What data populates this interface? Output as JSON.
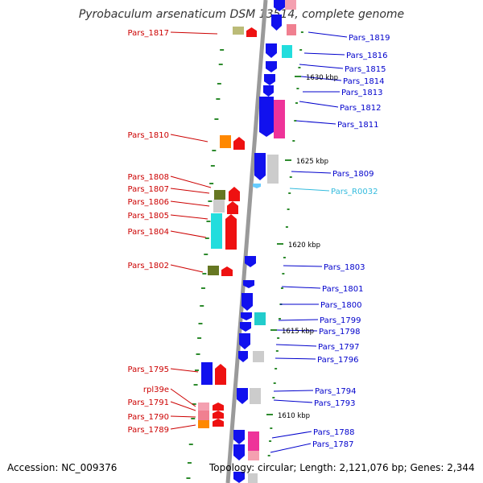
{
  "title": "Pyrobaculum arsenaticum DSM 13514, complete genome",
  "accession": "Accession: NC_009376",
  "topology": "Topology: circular; Length: 2,121,076 bp; Genes: 2,344",
  "colors": {
    "left_label": "#cc0000",
    "right_label": "#0000cc",
    "rna_label": "#33bbdd",
    "axis": "#999999",
    "tick": "#2e8b2e"
  },
  "kbp_marks": [
    {
      "label": "1630 kbp"
    },
    {
      "label": "1625 kbp"
    },
    {
      "label": "1620 kbp"
    },
    {
      "label": "1615 kbp"
    },
    {
      "label": "1610 kbp"
    }
  ],
  "left_genes": [
    {
      "label": "Pars_1817"
    },
    {
      "label": "Pars_1810"
    },
    {
      "label": "Pars_1808"
    },
    {
      "label": "Pars_1807"
    },
    {
      "label": "Pars_1806"
    },
    {
      "label": "Pars_1805"
    },
    {
      "label": "Pars_1804"
    },
    {
      "label": "Pars_1802"
    },
    {
      "label": "Pars_1795"
    },
    {
      "label": "rpl39e"
    },
    {
      "label": "Pars_1791"
    },
    {
      "label": "Pars_1790"
    },
    {
      "label": "Pars_1789"
    }
  ],
  "right_genes": [
    {
      "label": "Pars_1819"
    },
    {
      "label": "Pars_1816"
    },
    {
      "label": "Pars_1815"
    },
    {
      "label": "Pars_1814"
    },
    {
      "label": "Pars_1813"
    },
    {
      "label": "Pars_1812"
    },
    {
      "label": "Pars_1811"
    },
    {
      "label": "Pars_1809"
    },
    {
      "label": "Pars_R0032"
    },
    {
      "label": "Pars_1803"
    },
    {
      "label": "Pars_1801"
    },
    {
      "label": "Pars_1800"
    },
    {
      "label": "Pars_1799"
    },
    {
      "label": "Pars_1798"
    },
    {
      "label": "Pars_1797"
    },
    {
      "label": "Pars_1796"
    },
    {
      "label": "Pars_1794"
    },
    {
      "label": "Pars_1793"
    },
    {
      "label": "Pars_1788"
    },
    {
      "label": "Pars_1787"
    }
  ]
}
